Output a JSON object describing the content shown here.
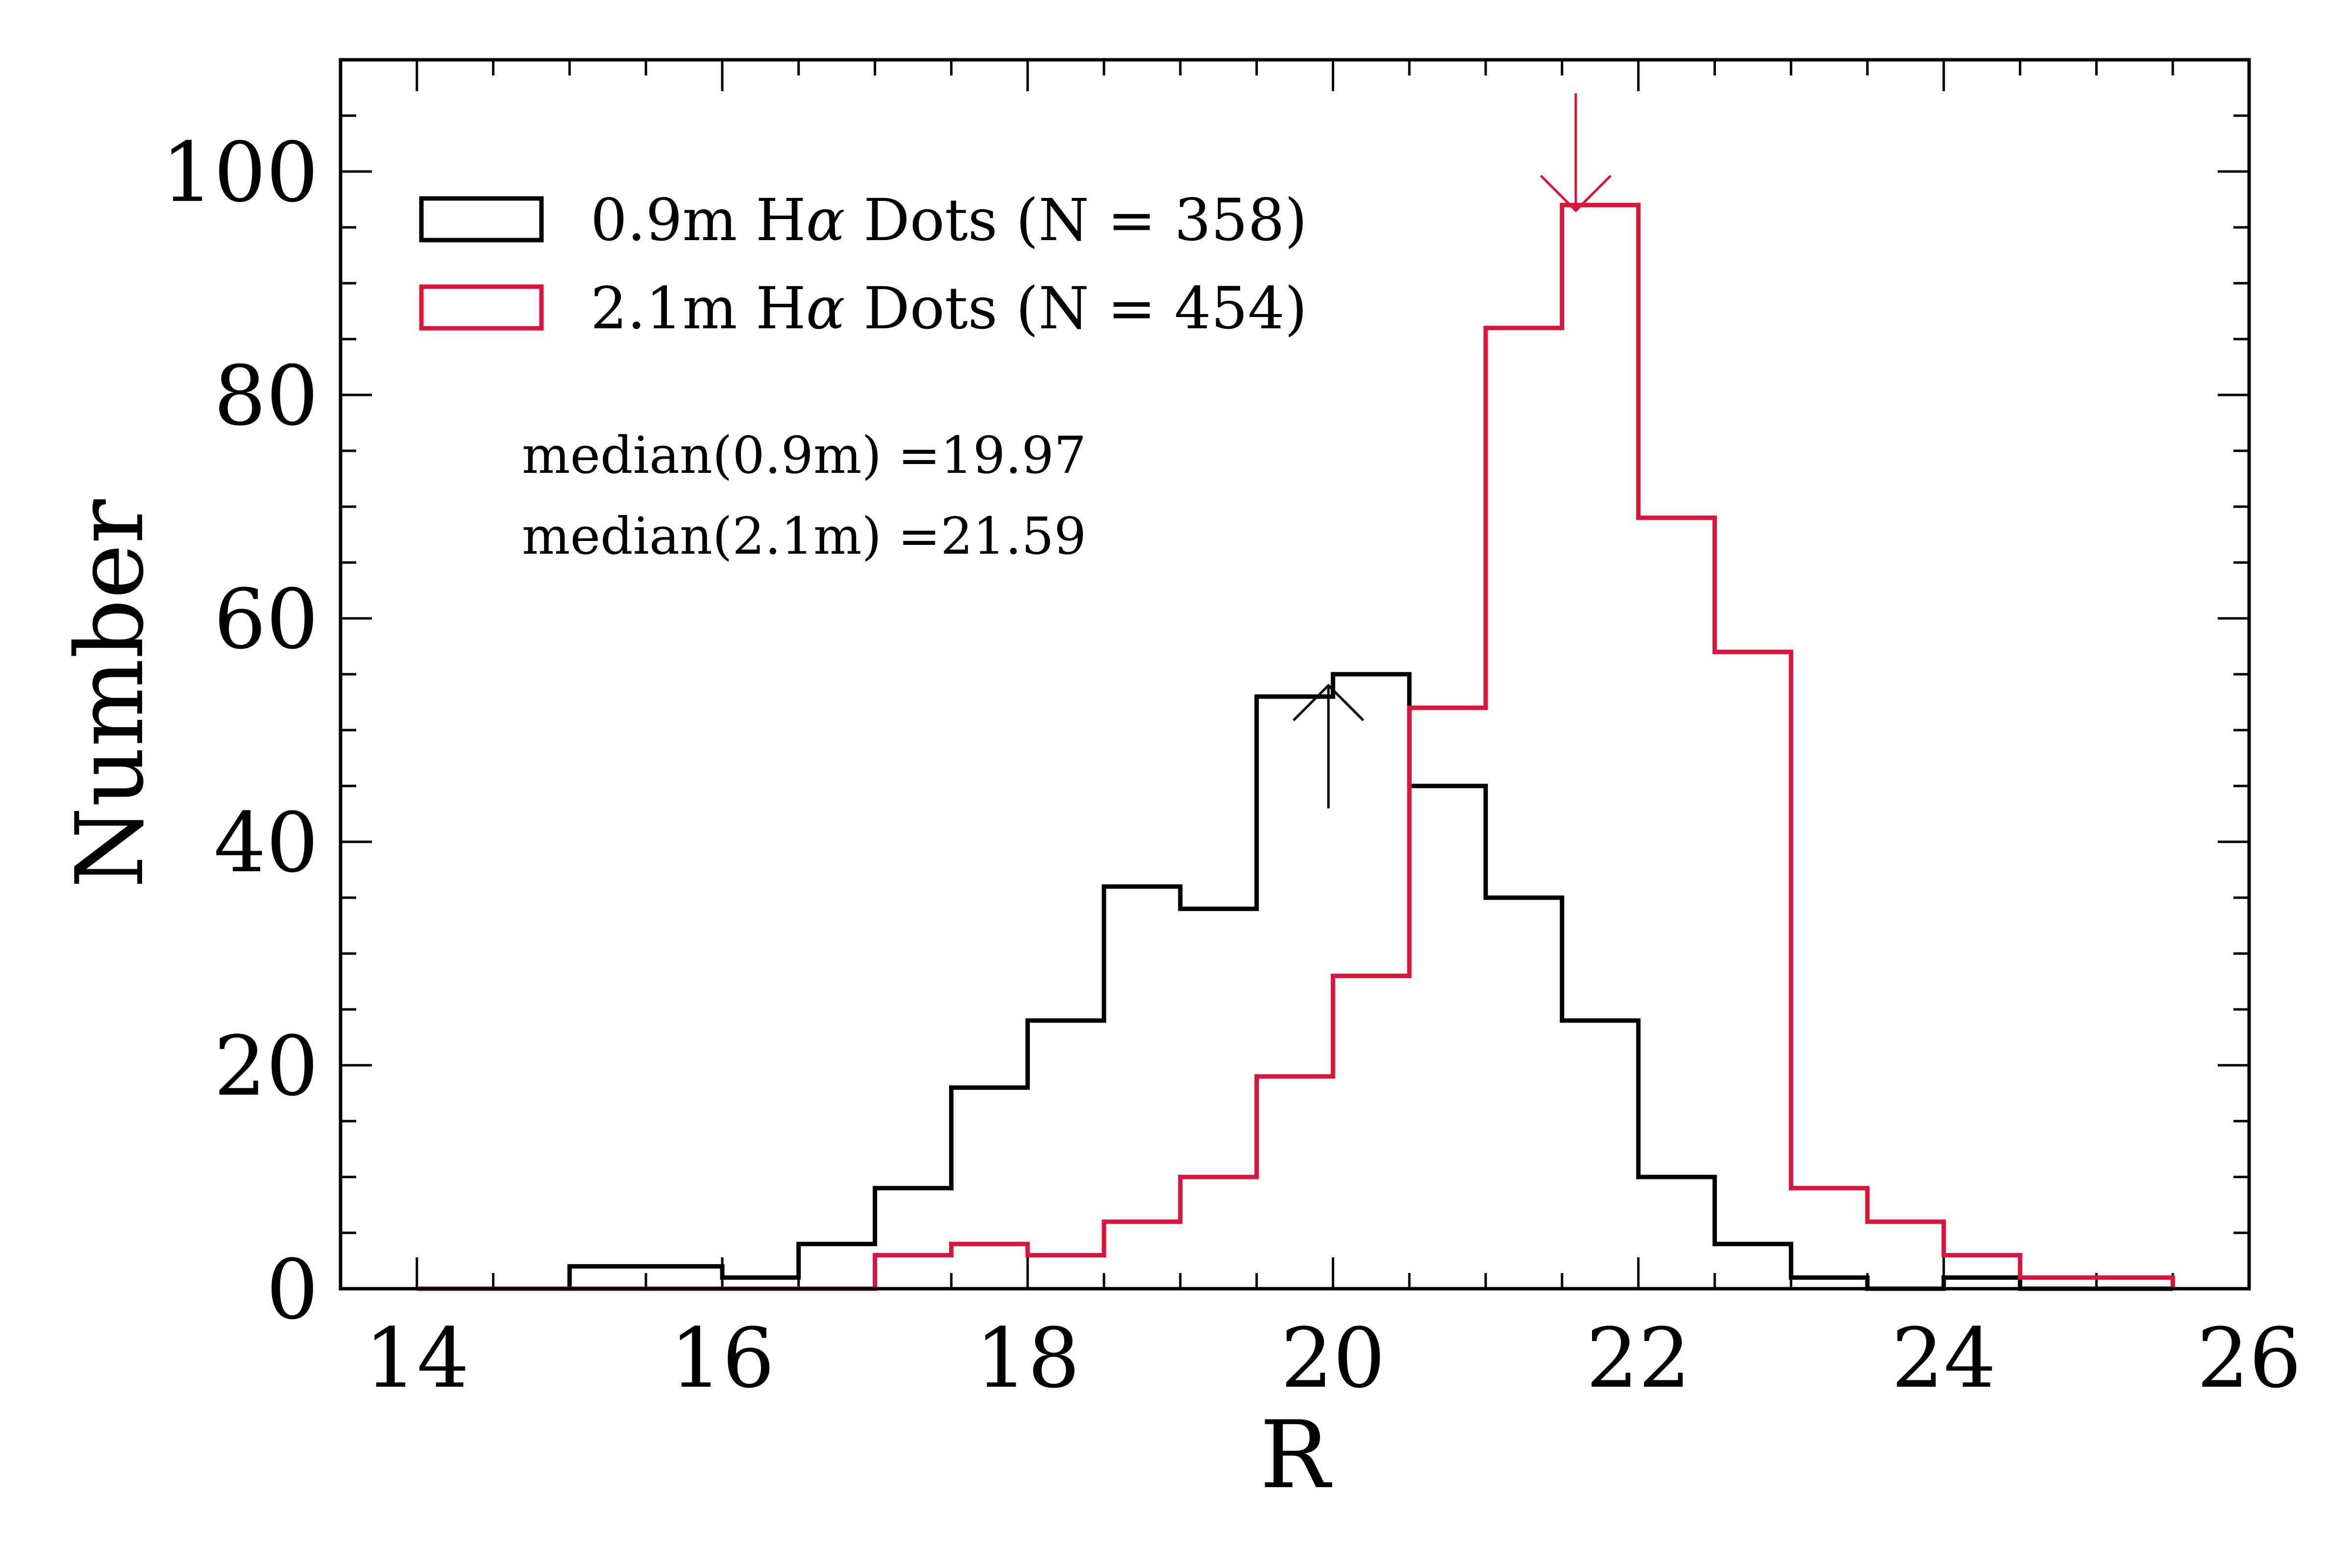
{
  "chart_data": {
    "type": "histogram",
    "xlabel": "R",
    "ylabel": "Number",
    "xlim": [
      13.5,
      26.0
    ],
    "ylim": [
      0,
      110
    ],
    "xticks": [
      14,
      16,
      18,
      20,
      22,
      24,
      26
    ],
    "yticks": [
      0,
      20,
      40,
      60,
      80,
      100
    ],
    "x_minor_step": 0.5,
    "y_minor_step": 5,
    "bin_edges": [
      14.0,
      14.5,
      15.0,
      15.5,
      16.0,
      16.5,
      17.0,
      17.5,
      18.0,
      18.5,
      19.0,
      19.5,
      20.0,
      20.5,
      21.0,
      21.5,
      22.0,
      22.5,
      23.0,
      23.5,
      24.0,
      24.5,
      25.0,
      25.5
    ],
    "series": [
      {
        "name": "0.9m",
        "legend_prefix": "0.9m H",
        "legend_greek": "α",
        "legend_suffix": " Dots (N = 358)",
        "color": "#000000",
        "counts": [
          0,
          0,
          2,
          2,
          1,
          4,
          9,
          18,
          24,
          36,
          34,
          53,
          55,
          45,
          35,
          24,
          10,
          4,
          1,
          0,
          1,
          0,
          0
        ],
        "median": 19.97,
        "median_arrow": "up"
      },
      {
        "name": "2.1m",
        "legend_prefix": "2.1m H",
        "legend_greek": "α",
        "legend_suffix": " Dots (N = 454)",
        "color": "#dc143c",
        "counts": [
          0,
          0,
          0,
          0,
          0,
          0,
          3,
          4,
          3,
          6,
          10,
          19,
          28,
          52,
          86,
          97,
          69,
          57,
          9,
          6,
          3,
          1,
          1
        ],
        "median": 21.59,
        "median_arrow": "down"
      }
    ],
    "annotations": [
      "median(0.9m) =19.97",
      "median(2.1m) =21.59"
    ],
    "legend_position": "top-left"
  }
}
